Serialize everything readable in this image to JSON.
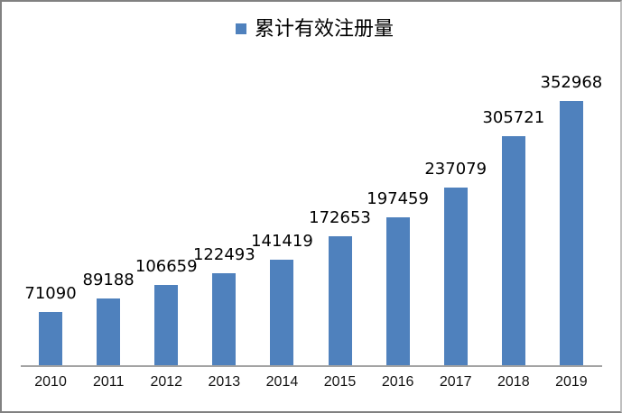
{
  "legend": {
    "label": "累计有效注册量"
  },
  "chart_data": {
    "type": "bar",
    "title": "",
    "xlabel": "",
    "ylabel": "",
    "categories": [
      "2010",
      "2011",
      "2012",
      "2013",
      "2014",
      "2015",
      "2016",
      "2017",
      "2018",
      "2019"
    ],
    "series": [
      {
        "name": "累计有效注册量",
        "values": [
          71090,
          89188,
          106659,
          122493,
          141419,
          172653,
          197459,
          237079,
          305721,
          352968
        ]
      }
    ],
    "data_labels_visible": true,
    "y_axis_visible": false,
    "grid": false,
    "legend_position": "top-center",
    "bar_color": "#4F81BD",
    "axis_line_color": "#A3A3A3"
  },
  "colors": {
    "bar": "#4F81BD",
    "axis_line": "#A3A3A3",
    "frame_border": "#818181",
    "text": "#000000"
  }
}
